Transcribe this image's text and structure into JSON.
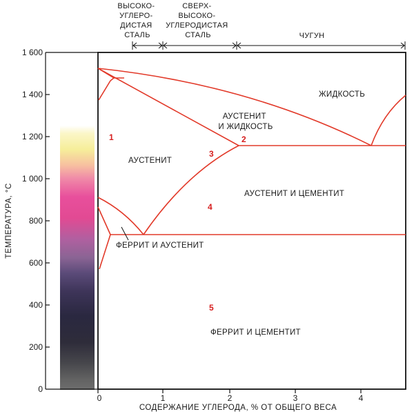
{
  "colors": {
    "phase_line": "#e23a2a",
    "zone_number": "#d61e1e",
    "axis": "#111111"
  },
  "header": {
    "high_carbon": [
      "ВЫСОКО-",
      "УГЛЕРО-",
      "ДИСТАЯ",
      "СТАЛЬ"
    ],
    "ultra_high_carbon": [
      "СВЕРХ-",
      "ВЫСОКО-",
      "УГЛЕРОДИСТАЯ",
      "СТАЛЬ"
    ],
    "cast_iron": "ЧУГУН"
  },
  "axes": {
    "y_label": "ТЕМПЕРАТУРА, °С",
    "x_label": "СОДЕРЖАНИЕ УГЛЕРОДА, % ОТ ОБЩЕГО ВЕСА",
    "y_ticks": [
      "0",
      "200",
      "400",
      "600",
      "800",
      "1 000",
      "1 200",
      "1 400",
      "1 600"
    ],
    "x_ticks": [
      "0",
      "1",
      "2",
      "3",
      "4"
    ]
  },
  "regions": {
    "liquid": "ЖИДКОСТЬ",
    "austenite_liquid": [
      "АУСТЕНИТ",
      "И ЖИДКОСТЬ"
    ],
    "austenite": "АУСТЕНИТ",
    "austenite_cementite": "АУСТЕНИТ И ЦЕМЕНТИТ",
    "ferrite_austenite": "ФЕРРИТ И АУСТЕНИТ",
    "ferrite_cementite": "ФЕРРИТ И ЦЕМЕНТИТ"
  },
  "zones": [
    "1",
    "2",
    "3",
    "4",
    "5"
  ]
}
